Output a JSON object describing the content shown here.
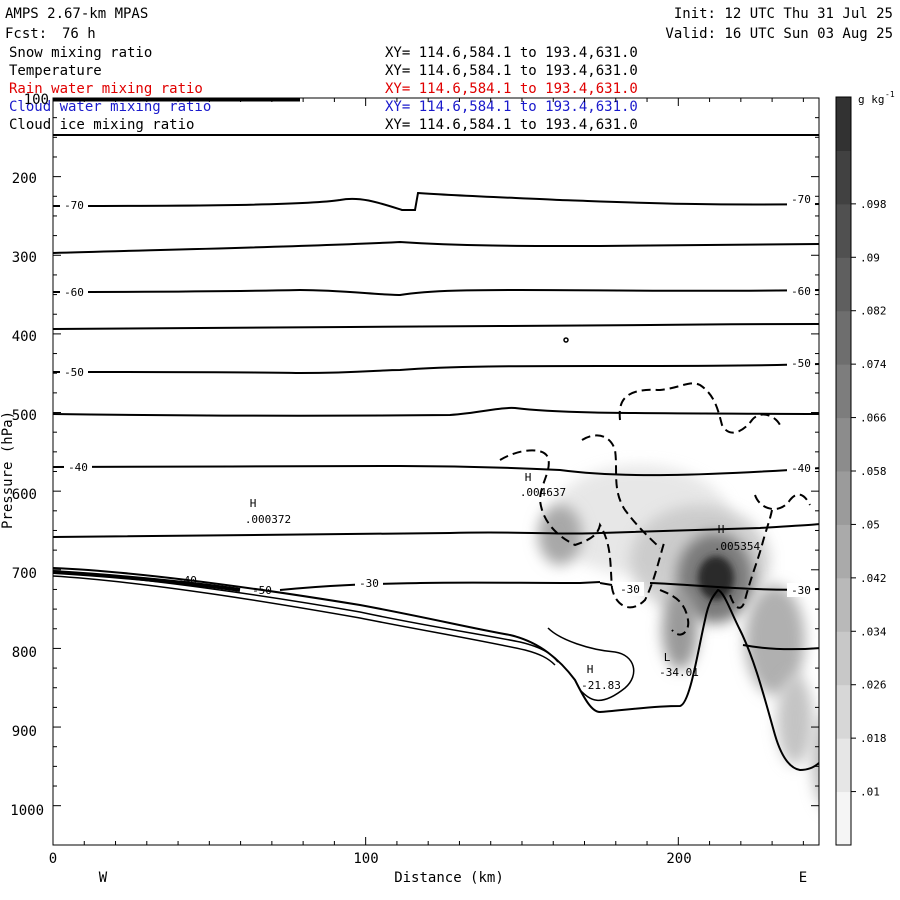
{
  "header": {
    "model": "AMPS 2.67-km MPAS",
    "fcst_label": "Fcst:",
    "fcst_value": "76 h",
    "init": "Init: 12 UTC Thu 31 Jul 25",
    "valid": "Valid: 16 UTC Sun 03 Aug 25"
  },
  "fields": [
    {
      "name": "Snow mixing ratio",
      "xy": "XY= 114.6,584.1 to 193.4,631.0",
      "color": "#000000"
    },
    {
      "name": "Temperature",
      "xy": "XY= 114.6,584.1 to 193.4,631.0",
      "color": "#000000"
    },
    {
      "name": "Rain water mixing ratio",
      "xy": "XY= 114.6,584.1 to 193.4,631.0",
      "color": "#e00000"
    },
    {
      "name": "Cloud water mixing ratio",
      "xy": "XY= 114.6,584.1 to 193.4,631.0",
      "color": "#1a1acc"
    },
    {
      "name": "Cloud ice mixing ratio",
      "xy": "XY= 114.6,584.1 to 193.4,631.0",
      "color": "#000000"
    }
  ],
  "chart_data": {
    "type": "heatmap",
    "xlabel": "Distance (km)",
    "ylabel": "Pressure (hPa)",
    "xlim": [
      0,
      245
    ],
    "ylim": [
      100,
      1050
    ],
    "x_ticks": [
      "0",
      "100",
      "200"
    ],
    "y_ticks": [
      "100",
      "200",
      "300",
      "400",
      "500",
      "600",
      "700",
      "800",
      "900",
      "1000"
    ],
    "direction_left": "W",
    "direction_right": "E",
    "colorbar": {
      "units": "g kg",
      "units_exp": "-1",
      "labels": [
        ".01",
        ".018",
        ".026",
        ".034",
        ".042",
        ".05",
        ".058",
        ".066",
        ".074",
        ".082",
        ".09",
        ".098"
      ]
    },
    "temperature_labels": [
      "-70",
      "-70",
      "-60",
      "-60",
      "-50",
      "-50",
      "-40",
      "-40",
      "-30",
      "-30",
      "-30",
      "-50",
      "-40"
    ],
    "extrema": [
      {
        "kind": "H",
        "value": ".000372",
        "x": 65,
        "p": 640
      },
      {
        "kind": "H",
        "value": ".004637",
        "x": 157,
        "p": 580
      },
      {
        "kind": "H",
        "value": ".005354",
        "x": 215,
        "p": 665
      },
      {
        "kind": "H",
        "value": "-21.83",
        "x": 174,
        "p": 838
      },
      {
        "kind": "L",
        "value": "-34.01",
        "x": 198,
        "p": 826
      }
    ]
  }
}
